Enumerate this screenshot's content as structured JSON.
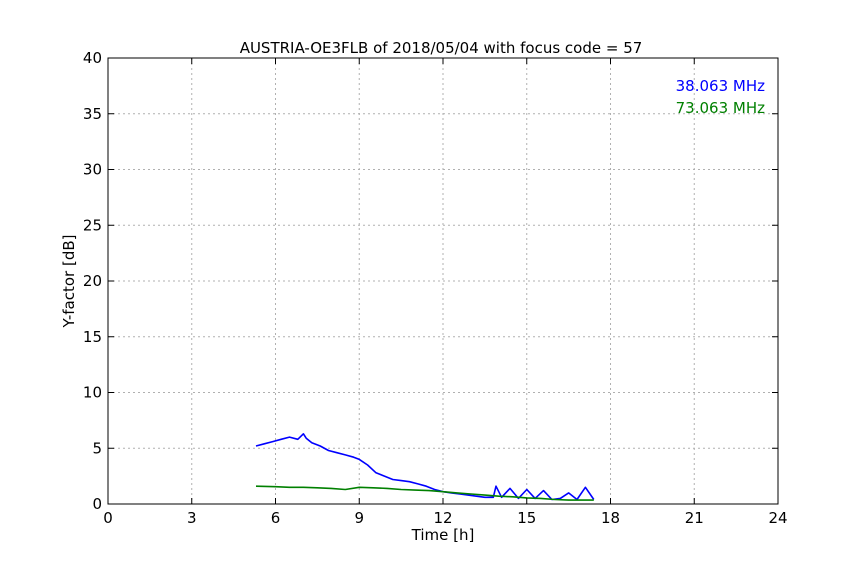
{
  "chart_data": {
    "type": "line",
    "title": "AUSTRIA-OE3FLB of 2018/05/04 with focus code = 57",
    "xlabel": "Time [h]",
    "ylabel": "Y-factor [dB]",
    "xlim": [
      0,
      24
    ],
    "ylim": [
      0,
      40
    ],
    "xticks": [
      "0",
      "3",
      "6",
      "9",
      "12",
      "15",
      "18",
      "21",
      "24"
    ],
    "yticks": [
      "0",
      "5",
      "10",
      "15",
      "20",
      "25",
      "30",
      "35",
      "40"
    ],
    "grid": true,
    "legend_position": "top-right",
    "series": [
      {
        "name": "38.063 MHz",
        "color": "#0000ff",
        "x": [
          5.3,
          5.6,
          5.9,
          6.2,
          6.5,
          6.8,
          7.0,
          7.1,
          7.3,
          7.6,
          7.9,
          8.2,
          8.5,
          8.8,
          9.0,
          9.3,
          9.6,
          9.9,
          10.2,
          10.5,
          10.8,
          11.1,
          11.4,
          11.7,
          12.0,
          12.3,
          12.6,
          12.9,
          13.2,
          13.5,
          13.8,
          13.9,
          14.1,
          14.4,
          14.7,
          15.0,
          15.3,
          15.6,
          15.9,
          16.2,
          16.5,
          16.8,
          17.1,
          17.4
        ],
        "y": [
          5.2,
          5.4,
          5.6,
          5.8,
          6.0,
          5.8,
          6.3,
          5.9,
          5.5,
          5.2,
          4.8,
          4.6,
          4.4,
          4.2,
          4.0,
          3.5,
          2.8,
          2.5,
          2.2,
          2.1,
          2.0,
          1.8,
          1.6,
          1.3,
          1.1,
          1.0,
          0.9,
          0.8,
          0.7,
          0.6,
          0.6,
          1.6,
          0.6,
          1.4,
          0.5,
          1.3,
          0.5,
          1.2,
          0.4,
          0.5,
          1.0,
          0.4,
          1.5,
          0.4
        ]
      },
      {
        "name": "73.063 MHz",
        "color": "#008000",
        "x": [
          5.3,
          6.0,
          6.5,
          7.0,
          7.5,
          8.0,
          8.5,
          9.0,
          9.5,
          10.0,
          10.5,
          11.0,
          11.5,
          12.0,
          12.5,
          13.0,
          13.5,
          14.0,
          14.5,
          15.0,
          15.5,
          16.0,
          16.5,
          17.0,
          17.4
        ],
        "y": [
          1.6,
          1.55,
          1.5,
          1.5,
          1.45,
          1.4,
          1.3,
          1.5,
          1.45,
          1.4,
          1.3,
          1.25,
          1.2,
          1.1,
          1.0,
          0.9,
          0.8,
          0.7,
          0.65,
          0.55,
          0.5,
          0.4,
          0.35,
          0.35,
          0.35
        ]
      }
    ]
  }
}
